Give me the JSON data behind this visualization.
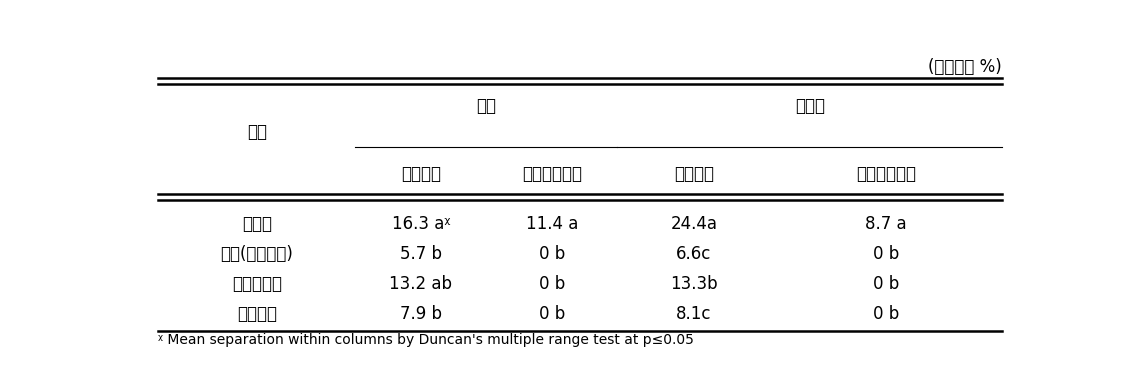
{
  "top_right_label": "(발생엽률 %)",
  "col_group_headers": [
    "비트",
    "적근대"
  ],
  "row_header": "구분",
  "sub_headers": [
    "잎굴파리",
    "은무늬밤나방",
    "잎굴파리",
    "은무늬밤나방"
  ],
  "rows": [
    {
      "label": "무처리",
      "values": [
        "16.3 aᵡ",
        "11.4 a",
        "24.4a",
        "8.7 a"
      ]
    },
    {
      "label": "관행(화학농약)",
      "values": [
        "5.7 b",
        "0 b",
        "6.6c",
        "0 b"
      ]
    },
    {
      "label": "친환경자재",
      "values": [
        "13.2 ab",
        "0 b",
        "13.3b",
        "0 b"
      ]
    },
    {
      "label": "종합기술",
      "values": [
        "7.9 b",
        "0 b",
        "8.1c",
        "0 b"
      ]
    }
  ],
  "footnote": "ᵡ Mean separation within columns by Duncan's multiple range test at p≤0.05",
  "bg_color": "#ffffff",
  "text_color": "#000000",
  "font_size": 12,
  "small_font_size": 10,
  "footnote_font_size": 10
}
